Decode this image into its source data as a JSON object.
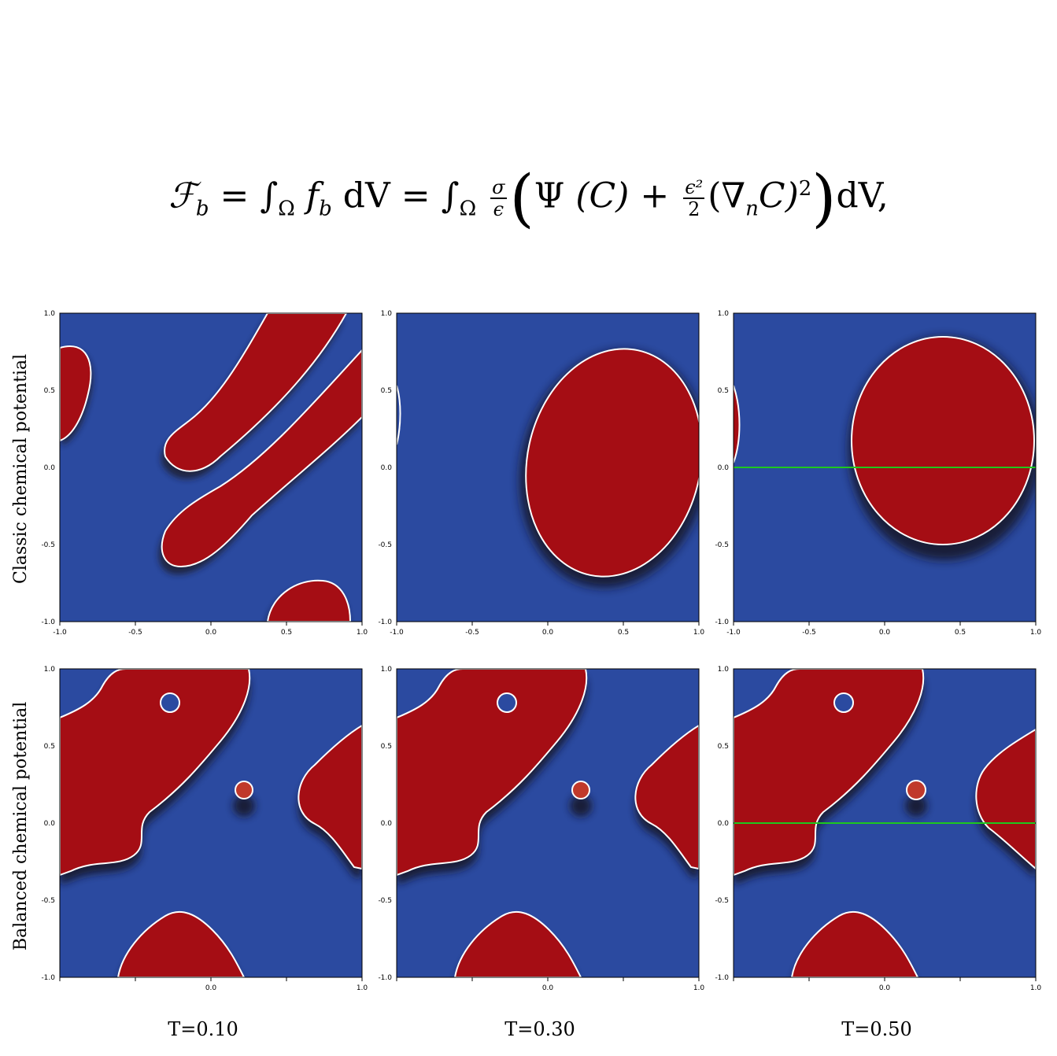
{
  "equation": {
    "lhs": "ℱ",
    "lhs_sub": "b",
    "eq": "=",
    "int1": "∫",
    "int_sub": "Ω",
    "fb": "f",
    "fb_sub": "b",
    "dV": "dV",
    "sigma": "σ",
    "eps": "ϵ",
    "psi": "Ψ",
    "C": "(C)",
    "plus": "+",
    "eps2": "ϵ²",
    "two": "2",
    "grad": "(∇",
    "grad_sub": "n",
    "gradC": "C)",
    "sq": "2",
    "end": "dV,"
  },
  "row_labels": [
    "Classic  chemical  potential",
    "Balanced  chemical  potential"
  ],
  "time_labels": [
    "T=0.10",
    "T=0.30",
    "T=0.50"
  ],
  "colors": {
    "blue": "#2b4aa0",
    "red": "#a50d14",
    "interface": "#ffffff",
    "line": "#1ec81e"
  },
  "row1_axes": {
    "y_ticks": [
      "1.0",
      "0.5",
      "0.0",
      "-0.5",
      "-1.0"
    ],
    "x_ticks": [
      "-1.0",
      "-0.5",
      "0.0",
      "0.5",
      "1.0"
    ]
  },
  "row2_axes": {
    "y_ticks": [
      "1.0",
      "0.5",
      "0.0",
      "-0.5",
      "-1.0"
    ],
    "x_ticks": [
      "",
      "",
      "0.0",
      "",
      "1.0"
    ]
  },
  "panels_line": [
    false,
    false,
    true,
    false,
    false,
    true
  ]
}
